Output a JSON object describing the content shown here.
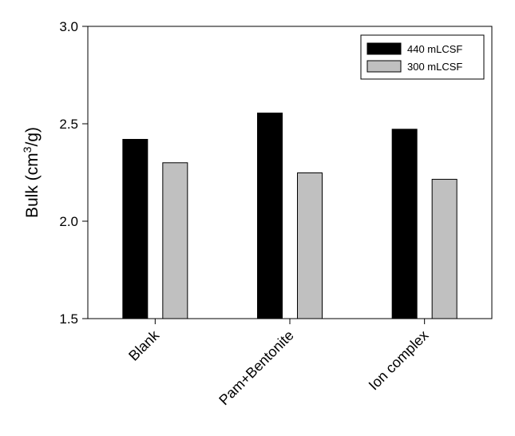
{
  "chart_data": {
    "type": "bar",
    "categories": [
      "Blank",
      "Pam+Bentonite",
      "Ion complex"
    ],
    "series": [
      {
        "name": "440 mLCSF",
        "values": [
          2.42,
          2.555,
          2.472
        ],
        "color": "#000000"
      },
      {
        "name": "300 mLCSF",
        "values": [
          2.3,
          2.248,
          2.215
        ],
        "color": "#c0c0c0"
      }
    ],
    "ylabel": {
      "main": "Bulk (cm",
      "sup": "3",
      "tail": "/g)"
    },
    "ylim": [
      1.5,
      3.0
    ],
    "yticks": [
      "1.5",
      "2.0",
      "2.5",
      "3.0"
    ],
    "legend_position": "top-right",
    "grid": false
  }
}
